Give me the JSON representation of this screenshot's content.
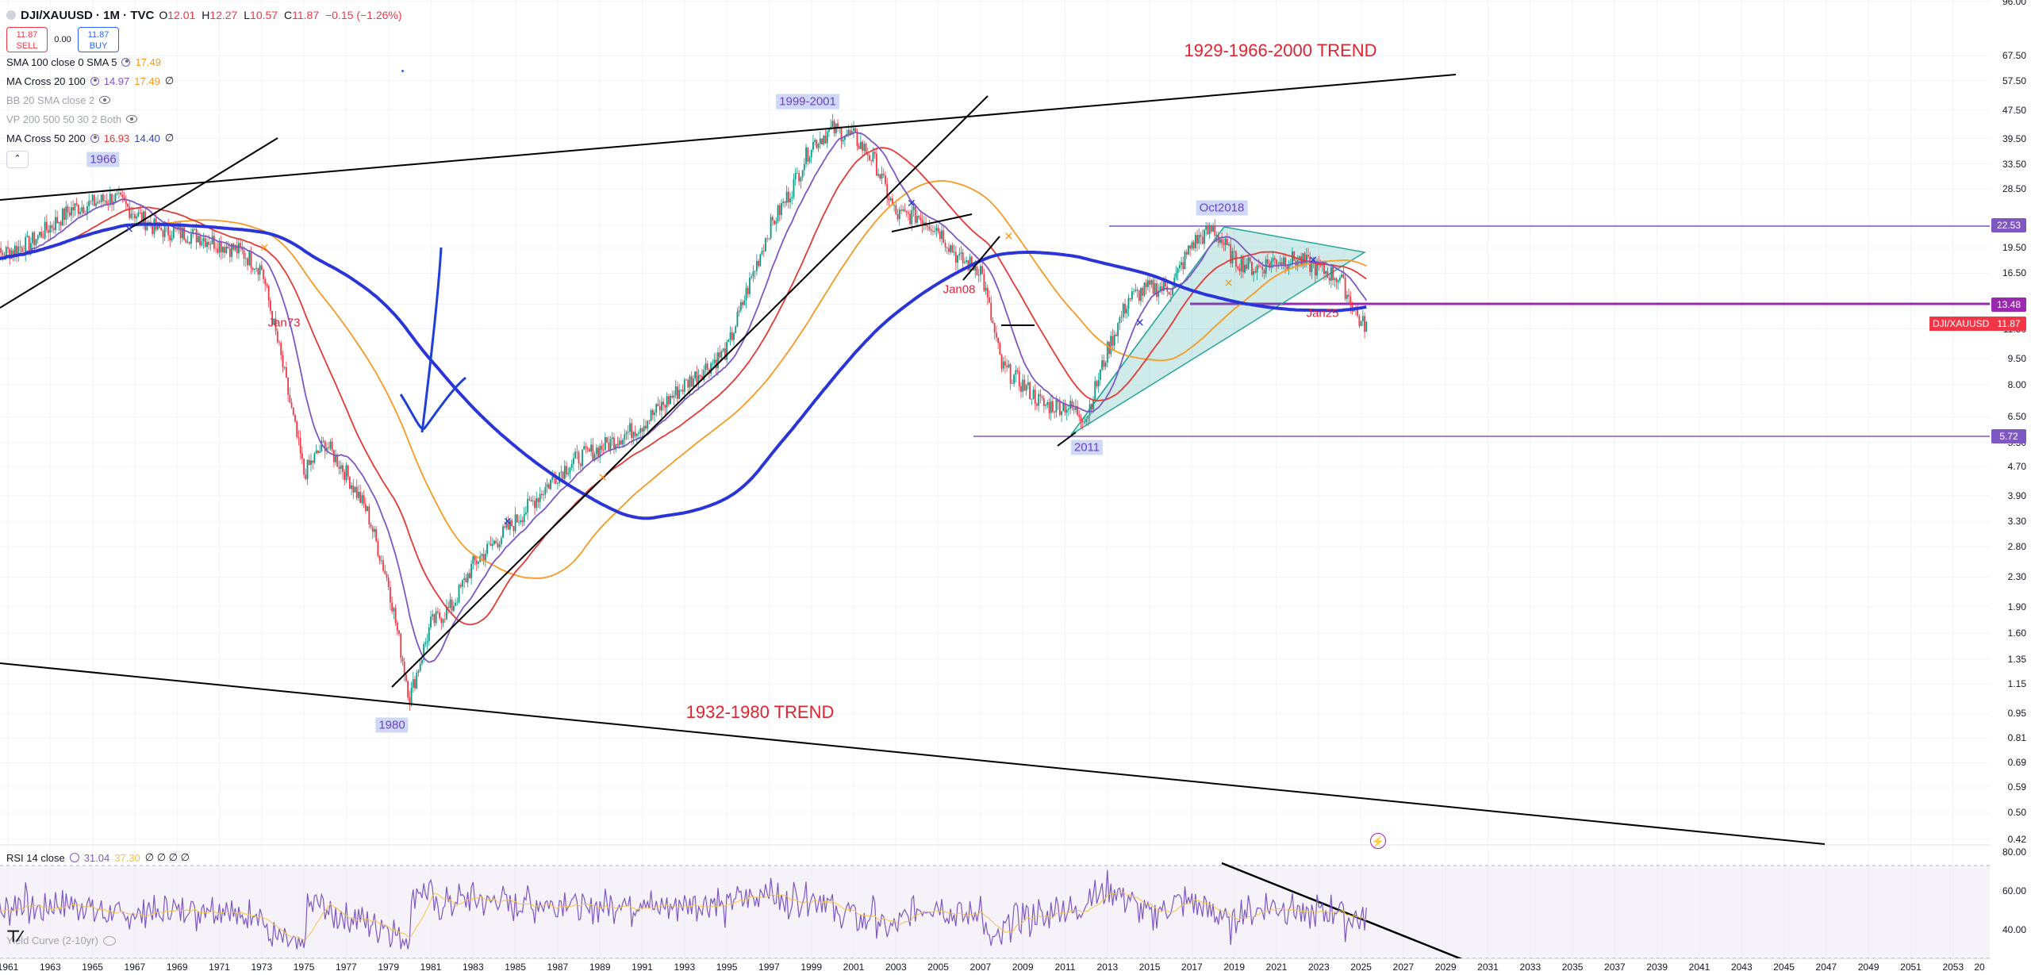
{
  "header": {
    "symbol": "DJI/XAUUSD · 1M · TVC",
    "ohlc": {
      "o": "12.01",
      "h": "12.27",
      "l": "10.57",
      "c": "11.87",
      "chg": "−0.15 (−1.26%)"
    },
    "sell_price": "11.87",
    "sell_label": "SELL",
    "spread": "0.00",
    "buy_price": "11.87",
    "buy_label": "BUY"
  },
  "indicators": [
    {
      "name": "SMA 100 close 0 SMA 5",
      "v1": "17.49",
      "v2": "",
      "c1": "#f59a23",
      "c2": "",
      "faded": false
    },
    {
      "name": "MA Cross 20 100",
      "v1": "14.97",
      "v2": "17.49",
      "c1": "#7e57c2",
      "c2": "#f59a23",
      "faded": false
    },
    {
      "name": "BB 20 SMA close 2",
      "v1": "",
      "v2": "",
      "c1": "",
      "c2": "",
      "faded": true
    },
    {
      "name": "VP 200 500 50 30 2 Both",
      "v1": "",
      "v2": "",
      "c1": "",
      "c2": "",
      "faded": true
    },
    {
      "name": "MA Cross 50 200",
      "v1": "16.93",
      "v2": "14.40",
      "c1": "#e53935",
      "c2": "#3949ab",
      "faded": false
    }
  ],
  "collapse_icon": "chevron-up-icon",
  "colors": {
    "candle_up": "#089981",
    "candle_down": "#f23645",
    "ma_purple": "#7e57c2",
    "ma_red": "#e53935",
    "ma_orange": "#f59a23",
    "ma_blue": "#2a35d8",
    "hline": "#9c27b0",
    "triangle": "#26a69a"
  },
  "price_axis": {
    "ticks": [
      "96.00",
      "67.50",
      "57.50",
      "47.50",
      "39.50",
      "33.50",
      "28.50",
      "22.50",
      "19.50",
      "16.50",
      "13.50",
      "11.50",
      "9.50",
      "8.00",
      "6.50",
      "5.50",
      "4.70",
      "3.90",
      "3.30",
      "2.80",
      "2.30",
      "1.90",
      "1.60",
      "1.35",
      "1.15",
      "0.95",
      "0.81",
      "0.69",
      "0.59",
      "0.50",
      "0.42"
    ],
    "badges": [
      {
        "value": "22.53",
        "color": "#7e57c2"
      },
      {
        "value": "13.48",
        "color": "#9c27b0"
      },
      {
        "value": "5.72",
        "color": "#7e57c2"
      }
    ],
    "symbol_badge": {
      "label": "DJI/XAUUSD",
      "value": "11.87"
    }
  },
  "time_axis": [
    "1961",
    "1963",
    "1965",
    "1967",
    "1969",
    "1971",
    "1973",
    "1975",
    "1977",
    "1979",
    "1981",
    "1983",
    "1985",
    "1987",
    "1989",
    "1991",
    "1993",
    "1995",
    "1997",
    "1999",
    "2001",
    "2003",
    "2005",
    "2007",
    "2009",
    "2011",
    "2013",
    "2015",
    "2017",
    "2019",
    "2021",
    "2023",
    "2025",
    "2027",
    "2029",
    "2031",
    "2033",
    "2035",
    "2037",
    "2039",
    "2041",
    "2043",
    "2045",
    "2047",
    "2049",
    "2051",
    "2053",
    "20"
  ],
  "annotations": {
    "trend_top": "1929-1966-2000 TREND",
    "trend_bottom": "1932-1980 TREND",
    "peak_1966": "1966",
    "peak_1999": "1999-2001",
    "peak_oct2018": "Oct2018",
    "low_1980": "1980",
    "low_2011": "2011",
    "jan73": "Jan73",
    "jan08": "Jan08",
    "jan25": "Jan25"
  },
  "rsi": {
    "name": "RSI 14 close",
    "v1": "31.04",
    "v2": "37.30",
    "extra": "∅ ∅ ∅ ∅",
    "ticks": [
      "80.00",
      "60.00",
      "40.00"
    ]
  },
  "yield_curve": {
    "name": "Yield Curve (2-10yr)"
  },
  "chart_data": {
    "type": "line",
    "title": "",
    "xlabel": "",
    "ylabel": "",
    "y_scale": "log",
    "series": [
      {
        "name": "DJI/XAUUSD",
        "x": [
          1960,
          1962,
          1964,
          1966,
          1968,
          1970,
          1972,
          1973,
          1974,
          1975,
          1976,
          1977,
          1978,
          1979,
          1980,
          1981,
          1982,
          1983,
          1985,
          1987,
          1988,
          1989,
          1991,
          1993,
          1995,
          1996,
          1997,
          1998,
          1999,
          2000,
          2001,
          2002,
          2003,
          2004,
          2005,
          2006,
          2007,
          2008,
          2009,
          2010,
          2011,
          2012,
          2013,
          2014,
          2015,
          2016,
          2017,
          2018,
          2019,
          2020,
          2021,
          2022,
          2023,
          2024,
          2025
        ],
        "values": [
          18,
          20,
          25,
          27,
          22,
          21,
          19,
          17,
          9,
          4.5,
          5.5,
          4.5,
          3.5,
          2.2,
          1.05,
          1.7,
          1.9,
          2.5,
          3.3,
          4.5,
          5.0,
          5.3,
          6.2,
          8,
          10,
          15,
          22,
          28,
          38,
          42,
          40,
          34,
          24,
          24,
          22,
          18,
          17,
          9,
          8,
          7,
          7,
          6.5,
          10,
          14,
          15,
          15,
          20,
          22,
          18,
          17,
          18,
          18,
          17,
          16,
          11.87
        ]
      }
    ],
    "ylim": [
      0.42,
      96
    ]
  }
}
